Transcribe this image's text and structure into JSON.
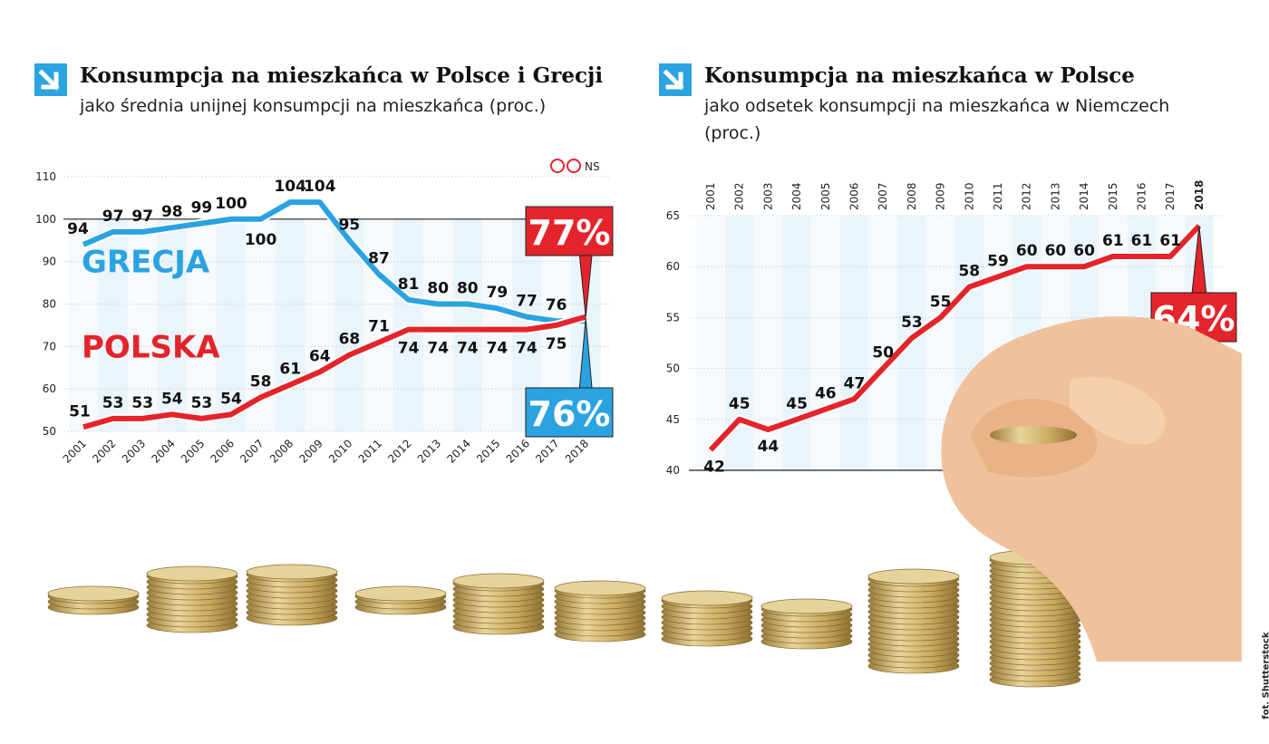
{
  "chart_data": [
    {
      "type": "line",
      "title": "Konsumpcja na mieszkańca w Polsce i Grecji",
      "subtitle": "jako średnia unijnej konsumpcji na mieszkańca (proc.)",
      "badge": "NS",
      "x": [
        "2001",
        "2002",
        "2003",
        "2004",
        "2005",
        "2006",
        "2007",
        "2008",
        "2009",
        "2010",
        "2011",
        "2012",
        "2013",
        "2014",
        "2015",
        "2016",
        "2017",
        "2018"
      ],
      "ylim": [
        50,
        110
      ],
      "yticks": [
        50,
        60,
        70,
        80,
        90,
        100,
        110
      ],
      "reference_line": 100,
      "series": [
        {
          "name": "GRECJA",
          "color": "#2aa3e0",
          "values": [
            94,
            97,
            97,
            98,
            99,
            100,
            100,
            104,
            104,
            95,
            87,
            81,
            80,
            80,
            79,
            77,
            76,
            76
          ],
          "labels": [
            "94",
            "97",
            "97",
            "98",
            "99",
            "100",
            "100",
            "104",
            "104",
            "95",
            "87",
            "81",
            "80",
            "80",
            "79",
            "77",
            "76",
            ""
          ],
          "end_label": "76%"
        },
        {
          "name": "POLSKA",
          "color": "#e3242b",
          "values": [
            51,
            53,
            53,
            54,
            53,
            54,
            58,
            61,
            64,
            68,
            71,
            74,
            74,
            74,
            74,
            74,
            75,
            77
          ],
          "labels": [
            "51",
            "53",
            "53",
            "54",
            "53",
            "54",
            "58",
            "61",
            "64",
            "68",
            "71",
            "74",
            "74",
            "74",
            "74",
            "74",
            "75",
            ""
          ],
          "end_label": "77%"
        }
      ]
    },
    {
      "type": "line",
      "title": "Konsumpcja na mieszkańca w Polsce",
      "subtitle": "jako odsetek konsumpcji na mieszkańca w Niemczech (proc.)",
      "x": [
        "2001",
        "2002",
        "2003",
        "2004",
        "2005",
        "2006",
        "2007",
        "2008",
        "2009",
        "2010",
        "2011",
        "2012",
        "2013",
        "2014",
        "2015",
        "2016",
        "2017",
        "2018"
      ],
      "ylim": [
        40,
        65
      ],
      "yticks": [
        40,
        45,
        50,
        55,
        60,
        65
      ],
      "series": [
        {
          "name": "",
          "color": "#e3242b",
          "values": [
            42,
            45,
            44,
            45,
            46,
            47,
            50,
            53,
            55,
            58,
            59,
            60,
            60,
            60,
            61,
            61,
            61,
            64
          ],
          "labels": [
            "42",
            "45",
            "44",
            "45",
            "46",
            "47",
            "50",
            "53",
            "55",
            "58",
            "59",
            "60",
            "60",
            "60",
            "61",
            "61",
            "61",
            ""
          ],
          "end_label": "64%"
        }
      ]
    }
  ],
  "photo_credit": "fot. Shutterstock"
}
